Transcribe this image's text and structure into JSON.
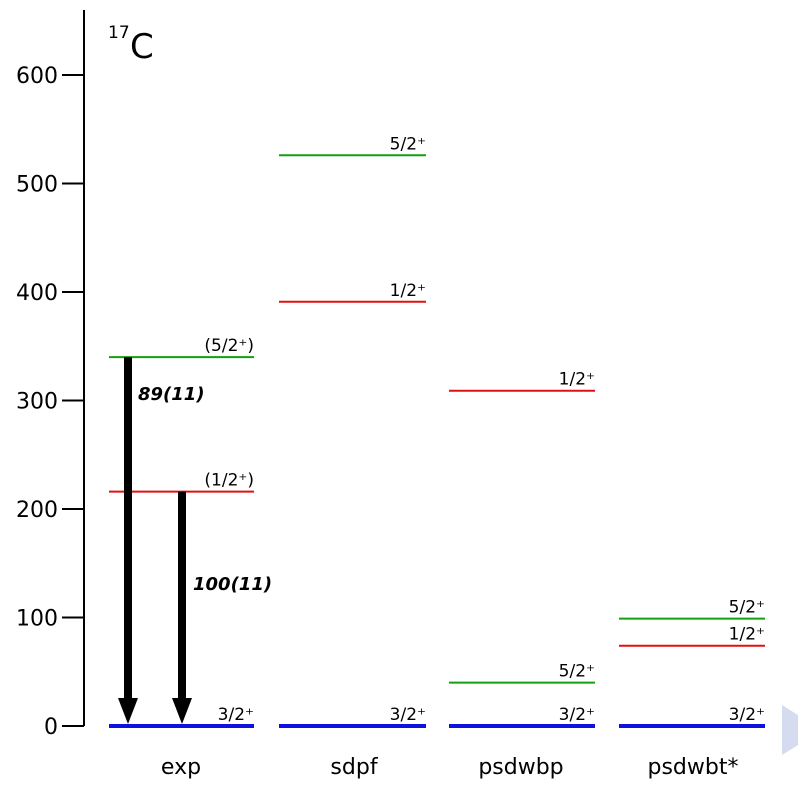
{
  "nucleus": {
    "mass": "17",
    "symbol": "C"
  },
  "axis": {
    "ylim": [
      0,
      620
    ],
    "ticks": [
      0,
      100,
      200,
      300,
      400,
      500,
      600
    ],
    "tick_labels": [
      "0",
      "100",
      "200",
      "300",
      "400",
      "500",
      "600"
    ]
  },
  "colors": {
    "three_half": "#1010e0",
    "one_half": "#e01010",
    "five_half": "#10a010",
    "arrow": "#000000"
  },
  "columns": [
    {
      "label": "exp",
      "levels": [
        {
          "energy": 0,
          "label": "3/2⁺",
          "color": "#1010e0"
        },
        {
          "energy": 216,
          "label": "(1/2⁺)",
          "color": "#e01010"
        },
        {
          "energy": 340,
          "label": "(5/2⁺)",
          "color": "#10a010"
        }
      ]
    },
    {
      "label": "sdpf",
      "levels": [
        {
          "energy": 0,
          "label": "3/2⁺",
          "color": "#1010e0"
        },
        {
          "energy": 391,
          "label": "1/2⁺",
          "color": "#e01010"
        },
        {
          "energy": 526,
          "label": "5/2⁺",
          "color": "#10a010"
        }
      ]
    },
    {
      "label": "psdwbp",
      "levels": [
        {
          "energy": 0,
          "label": "3/2⁺",
          "color": "#1010e0"
        },
        {
          "energy": 40,
          "label": "5/2⁺",
          "color": "#10a010"
        },
        {
          "energy": 309,
          "label": "1/2⁺",
          "color": "#e01010"
        }
      ]
    },
    {
      "label": "psdwbt*",
      "levels": [
        {
          "energy": 0,
          "label": "3/2⁺",
          "color": "#1010e0"
        },
        {
          "energy": 74,
          "label": "1/2⁺",
          "color": "#e01010"
        },
        {
          "energy": 99,
          "label": "5/2⁺",
          "color": "#10a010"
        }
      ]
    }
  ],
  "transitions": [
    {
      "from": 340,
      "to": 0,
      "label": "89(11)"
    },
    {
      "from": 216,
      "to": 0,
      "label": "100(11)"
    }
  ]
}
